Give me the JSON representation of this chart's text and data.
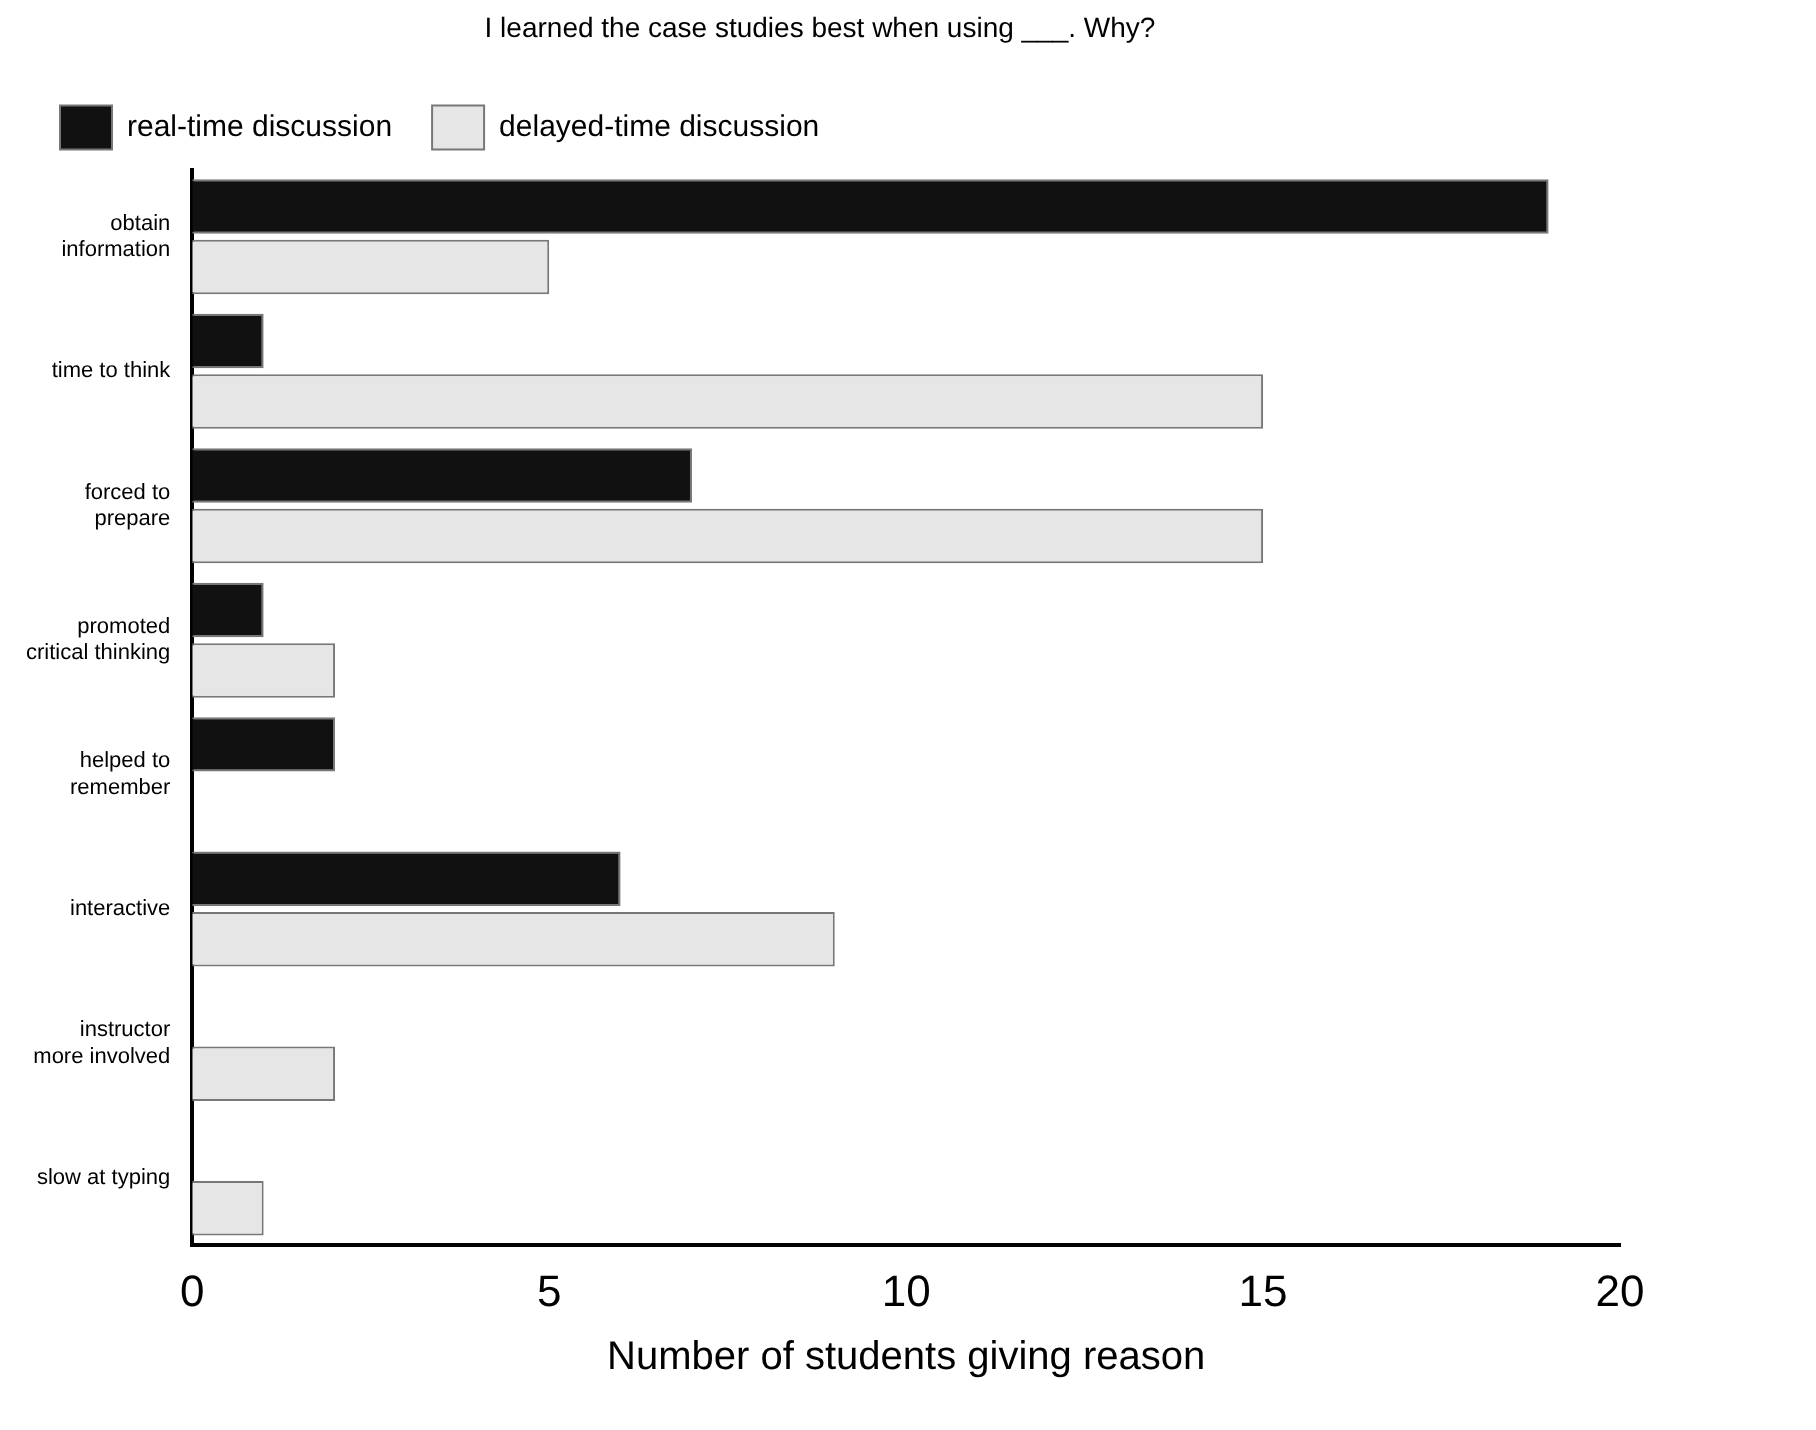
{
  "chart_data": {
    "type": "bar",
    "orientation": "horizontal",
    "title": "I learned the case studies best when using ___. Why?",
    "xlabel": "Number of students giving reason",
    "categories": [
      "obtain information",
      "time to think",
      "forced to prepare",
      "promoted critical thinking",
      "helped to remember",
      "interactive",
      "instructor more involved",
      "slow at typing"
    ],
    "series": [
      {
        "name": "real-time discussion",
        "color": "#111111",
        "values": [
          19,
          1,
          7,
          1,
          2,
          6,
          0,
          0
        ]
      },
      {
        "name": "delayed-time discussion",
        "color": "#e6e6e6",
        "values": [
          5,
          15,
          15,
          2,
          0,
          9,
          2,
          1
        ]
      }
    ],
    "xlim": [
      0,
      20
    ],
    "xticks": [
      0,
      5,
      10,
      15,
      20
    ],
    "grid": false,
    "legend": "top"
  }
}
